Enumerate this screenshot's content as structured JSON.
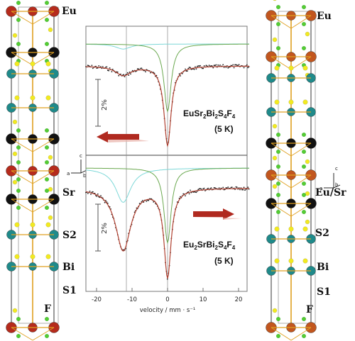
{
  "left_structure": {
    "labels": {
      "eu": "Eu",
      "sr": "Sr",
      "s2": "S2",
      "bi": "Bi",
      "s1": "S1",
      "f": "F"
    },
    "axes": {
      "c": "c",
      "a": "a",
      "b": "b"
    },
    "colors": {
      "eu": "#b52b1c",
      "sr": "#111111",
      "bi": "#1f8a8a",
      "s": "#f2ea20",
      "f": "#55cc33",
      "bond": "#e0a020",
      "frame": "#333333"
    }
  },
  "right_structure": {
    "labels": {
      "eu": "Eu",
      "eusr": "Eu/Sr",
      "s2": "S2",
      "bi": "Bi",
      "s1": "S1",
      "f": "F"
    },
    "axes": {
      "c": "c",
      "a": "a",
      "b": "b"
    },
    "colors": {
      "eu": "#c2561e",
      "sr": "#111111",
      "bi": "#1f8a8a",
      "s": "#f2ea20",
      "f": "#55cc33",
      "bond": "#e0a020",
      "frame": "#333333"
    }
  },
  "spectra": {
    "x_axis_label": "velocity / mm · s⁻¹",
    "x_ticks": [
      "-20",
      "-10",
      "0",
      "10",
      "20"
    ],
    "top": {
      "compound": "EuSr₂Bi₂S₄F₄",
      "temperature": "(5 K)",
      "scale": "2%",
      "arrow_direction": "left"
    },
    "bottom": {
      "compound": "Eu₂SrBi₂S₄F₄",
      "temperature": "(5 K)",
      "scale": "2%",
      "arrow_direction": "right"
    },
    "colors": {
      "fit": "#b04030",
      "eu3_component": "#7dd8d8",
      "eu2_component": "#6aa84f",
      "arrow": "#b02a20",
      "points": "#222222"
    }
  }
}
